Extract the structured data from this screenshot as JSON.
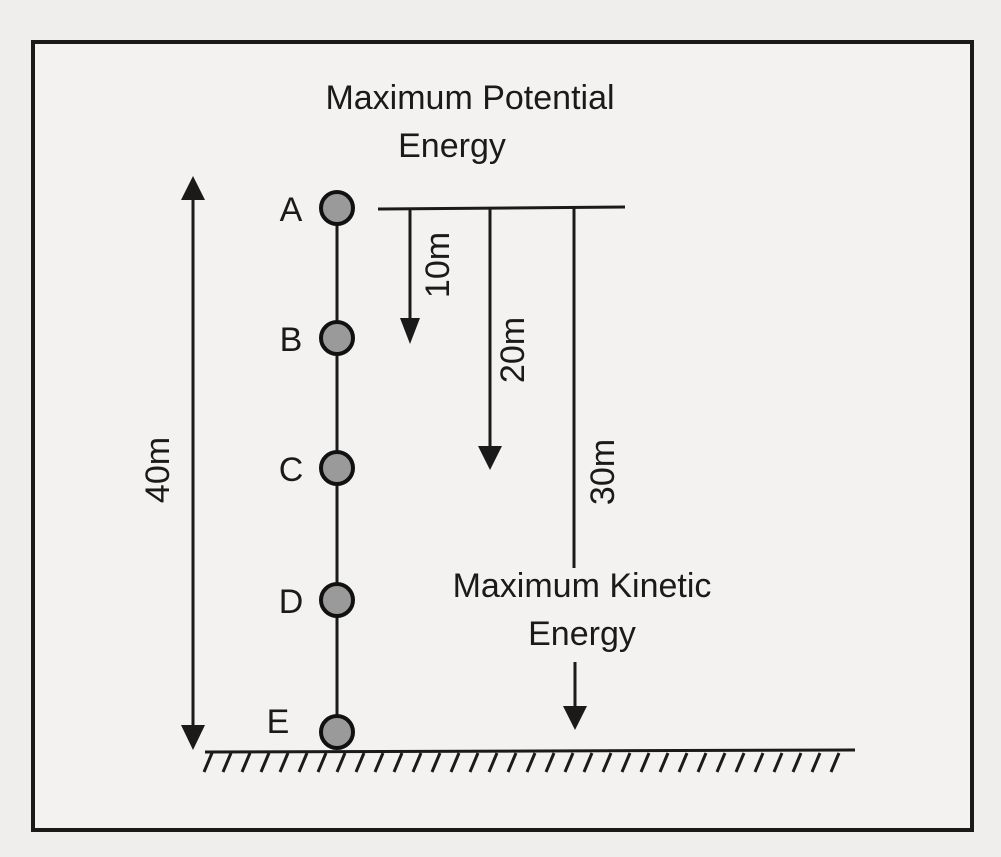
{
  "title": {
    "lines": [
      "Maximum Potential",
      "Energy"
    ]
  },
  "bottom_label": {
    "lines": [
      "Maximum Kinetic",
      "Energy"
    ]
  },
  "points": [
    {
      "label": "A"
    },
    {
      "label": "B"
    },
    {
      "label": "C"
    },
    {
      "label": "D"
    },
    {
      "label": "E"
    }
  ],
  "distances": {
    "total": "40m",
    "a_to_b": "10m",
    "a_to_c": "20m",
    "a_to_d": "30m"
  }
}
